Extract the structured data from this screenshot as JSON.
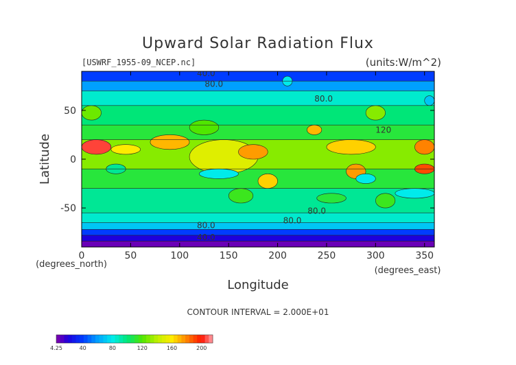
{
  "chart_data": {
    "type": "heatmap",
    "title": "Upward Solar Radiation Flux",
    "file_label": "[USWRF_1955-09_NCEP.nc]",
    "units_label": "(units:W/m^2)",
    "xlabel": "Longitude",
    "ylabel": "Latitude",
    "x_unit_label": "(degrees_east)",
    "y_unit_label": "(degrees_north)",
    "xlim": [
      0,
      360
    ],
    "ylim": [
      -90,
      90
    ],
    "xticks": [
      0,
      50,
      100,
      150,
      200,
      250,
      300,
      350
    ],
    "yticks": [
      -50,
      0,
      50
    ],
    "contour_interval_text": "CONTOUR INTERVAL = 2.000E+01",
    "contour_labels": [
      {
        "text": "40.0",
        "lon": 127,
        "lat": 88
      },
      {
        "text": "80.0",
        "lon": 135,
        "lat": 77
      },
      {
        "text": "80.0",
        "lon": 247,
        "lat": 62
      },
      {
        "text": "120",
        "lon": 308,
        "lat": 30
      },
      {
        "text": "80.0",
        "lon": 240,
        "lat": -53
      },
      {
        "text": "80.0",
        "lon": 215,
        "lat": -63
      },
      {
        "text": "80.0",
        "lon": 127,
        "lat": -68
      },
      {
        "text": "40.0",
        "lon": 127,
        "lat": -80
      }
    ],
    "colorbar": {
      "tick_labels": [
        "4.25",
        "40",
        "80",
        "120",
        "160",
        "200"
      ],
      "tick_values": [
        4.25,
        40,
        80,
        120,
        160,
        200
      ],
      "vmin": 4.25,
      "vmax": 215
    },
    "latitude_bands": [
      {
        "lat": [
          80,
          90
        ],
        "value": 40
      },
      {
        "lat": [
          70,
          80
        ],
        "value": 60
      },
      {
        "lat": [
          55,
          70
        ],
        "value": 85
      },
      {
        "lat": [
          35,
          55
        ],
        "value": 100
      },
      {
        "lat": [
          20,
          35
        ],
        "value": 110
      },
      {
        "lat": [
          -10,
          20
        ],
        "value": 130
      },
      {
        "lat": [
          -30,
          -10
        ],
        "value": 110
      },
      {
        "lat": [
          -55,
          -30
        ],
        "value": 95
      },
      {
        "lat": [
          -65,
          -55
        ],
        "value": 85
      },
      {
        "lat": [
          -72,
          -65
        ],
        "value": 70
      },
      {
        "lat": [
          -78,
          -72
        ],
        "value": 40
      },
      {
        "lat": [
          -84,
          -78
        ],
        "value": 20
      },
      {
        "lat": [
          -90,
          -84
        ],
        "value": 8
      }
    ],
    "hotspots": [
      {
        "lon": [
          0,
          30
        ],
        "lat": [
          5,
          20
        ],
        "value": 205
      },
      {
        "lon": [
          30,
          60
        ],
        "lat": [
          5,
          15
        ],
        "value": 160
      },
      {
        "lon": [
          70,
          110
        ],
        "lat": [
          10,
          25
        ],
        "value": 170
      },
      {
        "lon": [
          110,
          180
        ],
        "lat": [
          -15,
          20
        ],
        "value": 150
      },
      {
        "lon": [
          160,
          190
        ],
        "lat": [
          0,
          15
        ],
        "value": 175
      },
      {
        "lon": [
          230,
          245
        ],
        "lat": [
          25,
          35
        ],
        "value": 170
      },
      {
        "lon": [
          250,
          300
        ],
        "lat": [
          5,
          20
        ],
        "value": 165
      },
      {
        "lon": [
          270,
          290
        ],
        "lat": [
          -20,
          -5
        ],
        "value": 175
      },
      {
        "lon": [
          340,
          360
        ],
        "lat": [
          5,
          20
        ],
        "value": 180
      },
      {
        "lon": [
          340,
          360
        ],
        "lat": [
          -15,
          -5
        ],
        "value": 190
      },
      {
        "lon": [
          180,
          200
        ],
        "lat": [
          -30,
          -15
        ],
        "value": 165
      },
      {
        "lon": [
          120,
          160
        ],
        "lat": [
          -20,
          -10
        ],
        "value": 80
      },
      {
        "lon": [
          280,
          300
        ],
        "lat": [
          -25,
          -15
        ],
        "value": 80
      },
      {
        "lon": [
          25,
          45
        ],
        "lat": [
          -15,
          -5
        ],
        "value": 95
      },
      {
        "lon": [
          110,
          140
        ],
        "lat": [
          25,
          40
        ],
        "value": 120
      },
      {
        "lon": [
          0,
          20
        ],
        "lat": [
          40,
          55
        ],
        "value": 125
      },
      {
        "lon": [
          290,
          310
        ],
        "lat": [
          40,
          55
        ],
        "value": 130
      },
      {
        "lon": [
          300,
          320
        ],
        "lat": [
          -50,
          -35
        ],
        "value": 115
      },
      {
        "lon": [
          320,
          360
        ],
        "lat": [
          -40,
          -30
        ],
        "value": 80
      },
      {
        "lon": [
          240,
          270
        ],
        "lat": [
          -45,
          -35
        ],
        "value": 110
      },
      {
        "lon": [
          150,
          175
        ],
        "lat": [
          -45,
          -30
        ],
        "value": 115
      },
      {
        "lon": [
          350,
          360
        ],
        "lat": [
          55,
          65
        ],
        "value": 70
      },
      {
        "lon": [
          205,
          215
        ],
        "lat": [
          75,
          85
        ],
        "value": 80
      }
    ]
  }
}
